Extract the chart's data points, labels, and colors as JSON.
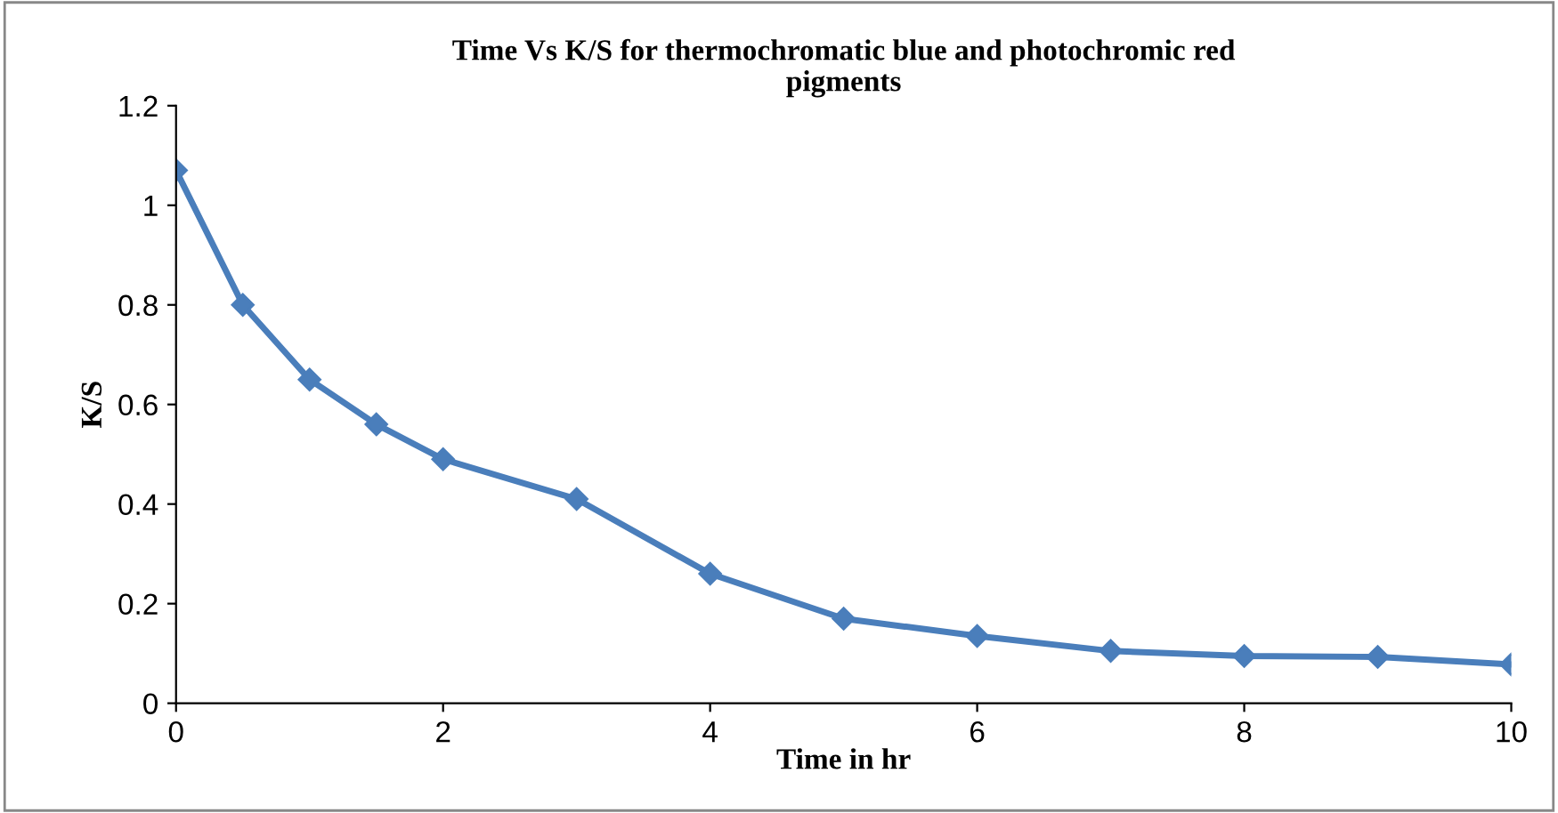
{
  "chart_data": {
    "type": "line",
    "title": "Time Vs K/S for thermochromatic blue and photochromic red\npigments",
    "xlabel": "Time in hr",
    "ylabel": "K/S",
    "x": [
      0,
      0.5,
      1,
      1.5,
      2,
      3,
      4,
      5,
      6,
      7,
      8,
      9,
      10
    ],
    "series": [
      {
        "color": "#4a7ebb",
        "values": [
          1.07,
          0.8,
          0.65,
          0.56,
          0.49,
          0.41,
          0.26,
          0.17,
          0.135,
          0.105,
          0.095,
          0.093,
          0.078
        ]
      }
    ],
    "xlim": [
      0,
      10
    ],
    "xticks": [
      0,
      2,
      4,
      6,
      8,
      10
    ],
    "ylim": [
      0,
      1.2
    ],
    "yticks": [
      0,
      0.2,
      0.4,
      0.6,
      0.8,
      1,
      1.2
    ],
    "marker": "diamond",
    "line_style": "solid",
    "grid": false,
    "legend": false
  }
}
